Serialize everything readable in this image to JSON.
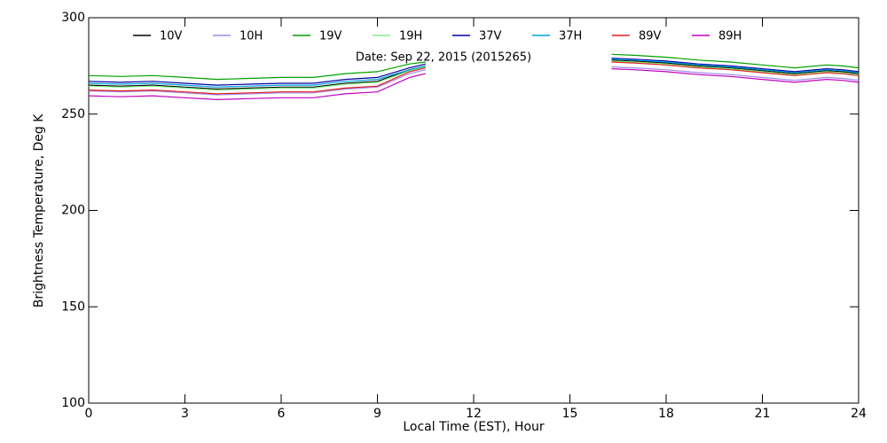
{
  "chart_data": {
    "type": "line",
    "xlabel": "Local Time (EST), Hour",
    "ylabel": "Brightness Temperature, Deg K",
    "annotation": "Date: Sep 22, 2015 (2015265)",
    "x": [
      0,
      1,
      2,
      3,
      4,
      5,
      6,
      7,
      8,
      9,
      10,
      10.5,
      13,
      16.3,
      17,
      18,
      19,
      20,
      21,
      22,
      23,
      23.5,
      24
    ],
    "xlim": [
      0,
      24
    ],
    "xticks": [
      0,
      3,
      6,
      9,
      12,
      15,
      18,
      21,
      24
    ],
    "ylim": [
      100,
      300
    ],
    "yticks": [
      100,
      150,
      200,
      250,
      300
    ],
    "series": [
      {
        "name": "10V",
        "color": "#000000",
        "values": [
          265,
          264.5,
          265,
          264,
          263,
          263.5,
          264,
          264,
          266,
          267,
          273,
          275,
          null,
          278,
          277.5,
          276.5,
          275,
          274,
          272.5,
          271,
          272.5,
          272,
          271
        ]
      },
      {
        "name": "10H",
        "color": "#a088e8",
        "values": [
          262,
          261.5,
          262,
          261,
          260,
          260.5,
          261,
          261,
          263,
          264,
          271,
          273,
          null,
          274.5,
          274,
          273,
          271.5,
          270.5,
          269,
          267.5,
          269,
          268.5,
          267.5
        ]
      },
      {
        "name": "19V",
        "color": "#00a000",
        "values": [
          270,
          269.5,
          270,
          269,
          268,
          268.5,
          269,
          269,
          271,
          272,
          276,
          277,
          null,
          281,
          280.5,
          279.5,
          278,
          277,
          275.5,
          274,
          275.5,
          275,
          274
        ]
      },
      {
        "name": "19H",
        "color": "#80f080",
        "values": [
          264.5,
          264,
          264.5,
          263.5,
          262.5,
          263,
          263.5,
          263.5,
          265.5,
          266.5,
          272.5,
          274.5,
          null,
          277.5,
          277,
          276,
          274.5,
          273.5,
          272,
          270.5,
          272,
          271.5,
          270.5
        ]
      },
      {
        "name": "37V",
        "color": "#0000a0",
        "values": [
          267,
          266.5,
          267,
          266,
          265,
          265.5,
          266,
          266,
          268,
          269,
          274,
          276,
          null,
          279,
          278.5,
          277.5,
          276,
          275,
          273.5,
          272,
          273.5,
          273,
          272
        ]
      },
      {
        "name": "37H",
        "color": "#00a0e0",
        "values": [
          266,
          265.5,
          266,
          265,
          264,
          264.5,
          265,
          265,
          267,
          268,
          273,
          275,
          null,
          278.5,
          278,
          277,
          275.5,
          274.5,
          273,
          271.5,
          273,
          272.5,
          271.5
        ]
      },
      {
        "name": "89V",
        "color": "#e02020",
        "values": [
          262.5,
          262,
          262.5,
          261.5,
          260.5,
          261,
          261.5,
          261.5,
          263.5,
          264.5,
          272,
          274,
          null,
          277,
          276.5,
          275.5,
          274,
          273,
          271.5,
          270,
          271.5,
          271,
          270
        ]
      },
      {
        "name": "89H",
        "color": "#c000c0",
        "values": [
          259.5,
          259,
          259.5,
          258.5,
          257.5,
          258,
          258.5,
          258.5,
          260.5,
          261.5,
          269,
          271,
          null,
          273.5,
          273,
          272,
          270.5,
          269.5,
          268,
          266.5,
          268,
          267.5,
          266.5
        ]
      }
    ]
  }
}
